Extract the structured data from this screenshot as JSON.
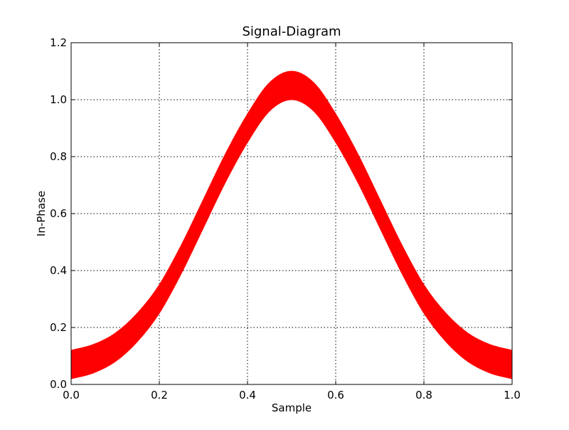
{
  "chart_data": {
    "type": "area",
    "title": "Signal-Diagram",
    "xlabel": "Sample",
    "ylabel": "In-Phase",
    "xlim": [
      0,
      1
    ],
    "ylim": [
      0,
      1.2
    ],
    "grid": true,
    "x_ticks": [
      0.0,
      0.2,
      0.4,
      0.6,
      0.8,
      1.0
    ],
    "x_tick_labels": [
      "0.0",
      "0.2",
      "0.4",
      "0.6",
      "0.8",
      "1.0"
    ],
    "y_ticks": [
      0.0,
      0.2,
      0.4,
      0.6,
      0.8,
      1.0,
      1.2
    ],
    "y_tick_labels": [
      "0.0",
      "0.2",
      "0.4",
      "0.6",
      "0.8",
      "1.0",
      "1.2"
    ],
    "series": [
      {
        "color": "#ff0000",
        "x": [
          0.0,
          0.05,
          0.1,
          0.15,
          0.2,
          0.25,
          0.3,
          0.35,
          0.4,
          0.45,
          0.5,
          0.55,
          0.6,
          0.65,
          0.7,
          0.75,
          0.8,
          0.85,
          0.9,
          0.95,
          1.0
        ],
        "lower": [
          0.02,
          0.04,
          0.08,
          0.15,
          0.25,
          0.39,
          0.55,
          0.71,
          0.85,
          0.96,
          1.0,
          0.96,
          0.85,
          0.71,
          0.55,
          0.39,
          0.25,
          0.15,
          0.08,
          0.04,
          0.02
        ],
        "upper": [
          0.12,
          0.14,
          0.18,
          0.25,
          0.35,
          0.49,
          0.65,
          0.81,
          0.95,
          1.06,
          1.1,
          1.06,
          0.95,
          0.81,
          0.65,
          0.49,
          0.35,
          0.25,
          0.18,
          0.14,
          0.12
        ]
      }
    ]
  }
}
